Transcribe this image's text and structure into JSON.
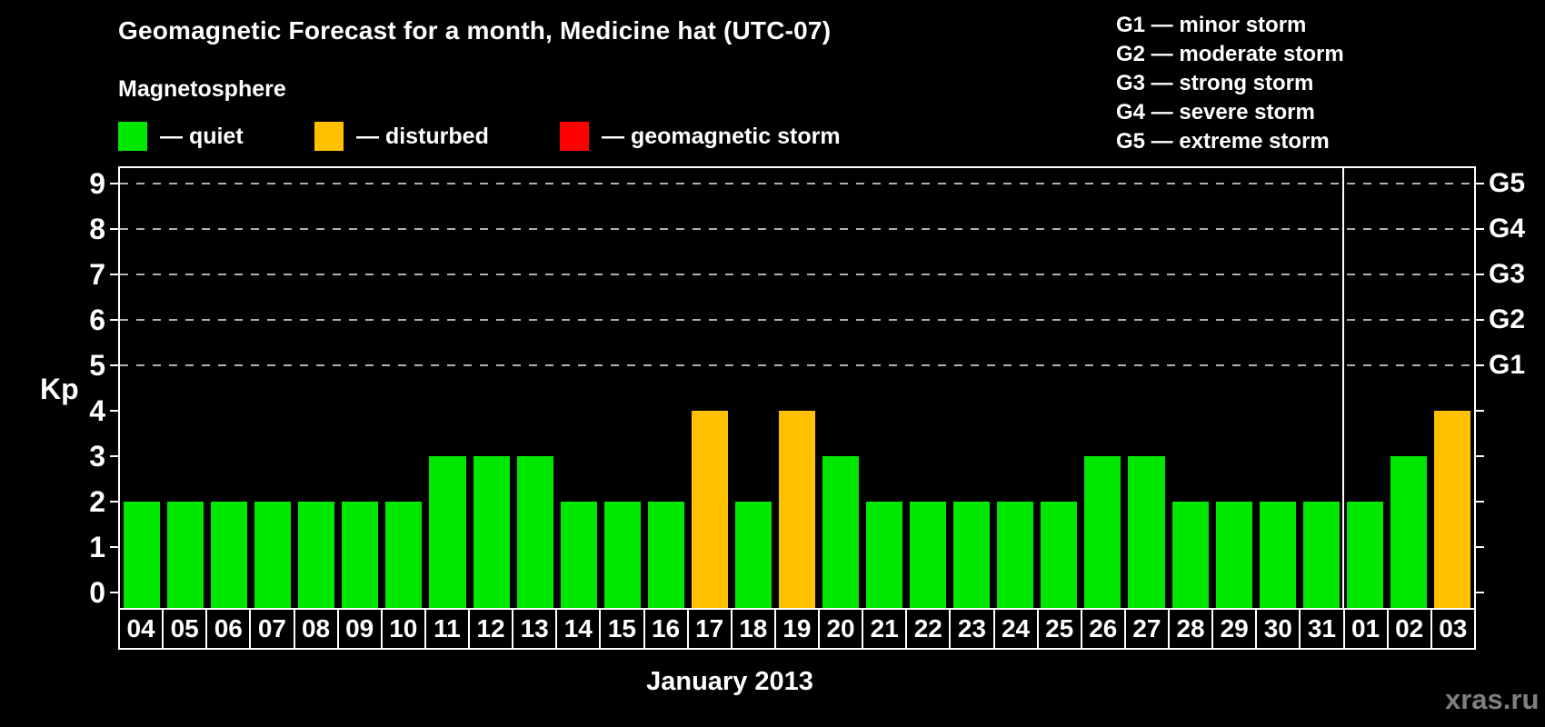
{
  "chart_data": {
    "type": "bar",
    "title": "Geomagnetic Forecast for a month, Medicine hat (UTC-07)",
    "xlabel": "January 2013",
    "ylabel": "Kp",
    "ylim": [
      0,
      9
    ],
    "yticks": [
      0,
      1,
      2,
      3,
      4,
      5,
      6,
      7,
      8,
      9
    ],
    "grid": "dashed horizontal lines at Kp 5-9 only",
    "categories": [
      "04",
      "05",
      "06",
      "07",
      "08",
      "09",
      "10",
      "11",
      "12",
      "13",
      "14",
      "15",
      "16",
      "17",
      "18",
      "19",
      "20",
      "21",
      "22",
      "23",
      "24",
      "25",
      "26",
      "27",
      "28",
      "29",
      "30",
      "31",
      "01",
      "02",
      "03"
    ],
    "values": [
      2,
      2,
      2,
      2,
      2,
      2,
      2,
      3,
      3,
      3,
      2,
      2,
      2,
      4,
      2,
      4,
      3,
      2,
      2,
      2,
      2,
      2,
      3,
      3,
      2,
      2,
      2,
      2,
      2,
      3,
      4
    ],
    "statuses": [
      "quiet",
      "quiet",
      "quiet",
      "quiet",
      "quiet",
      "quiet",
      "quiet",
      "quiet",
      "quiet",
      "quiet",
      "quiet",
      "quiet",
      "quiet",
      "disturbed",
      "quiet",
      "disturbed",
      "quiet",
      "quiet",
      "quiet",
      "quiet",
      "quiet",
      "quiet",
      "quiet",
      "quiet",
      "quiet",
      "quiet",
      "quiet",
      "quiet",
      "quiet",
      "quiet",
      "disturbed"
    ],
    "colors": {
      "quiet": "#00e800",
      "disturbed": "#ffc000",
      "storm": "#ff0000"
    },
    "right_axis": [
      {
        "kp": 5,
        "label": "G1"
      },
      {
        "kp": 6,
        "label": "G2"
      },
      {
        "kp": 7,
        "label": "G3"
      },
      {
        "kp": 8,
        "label": "G4"
      },
      {
        "kp": 9,
        "label": "G5"
      }
    ],
    "month_separator_index": 28
  },
  "magnetosphere": {
    "title": "Magnetosphere",
    "items": [
      {
        "key": "quiet",
        "label": "— quiet",
        "color": "#00e800"
      },
      {
        "key": "disturbed",
        "label": "— disturbed",
        "color": "#ffc000"
      },
      {
        "key": "storm",
        "label": "— geomagnetic storm",
        "color": "#ff0000"
      }
    ]
  },
  "g_legend": [
    "G1 — minor storm",
    "G2 — moderate storm",
    "G3 — strong storm",
    "G4 — severe storm",
    "G5 — extreme storm"
  ],
  "watermark": "xras.ru"
}
